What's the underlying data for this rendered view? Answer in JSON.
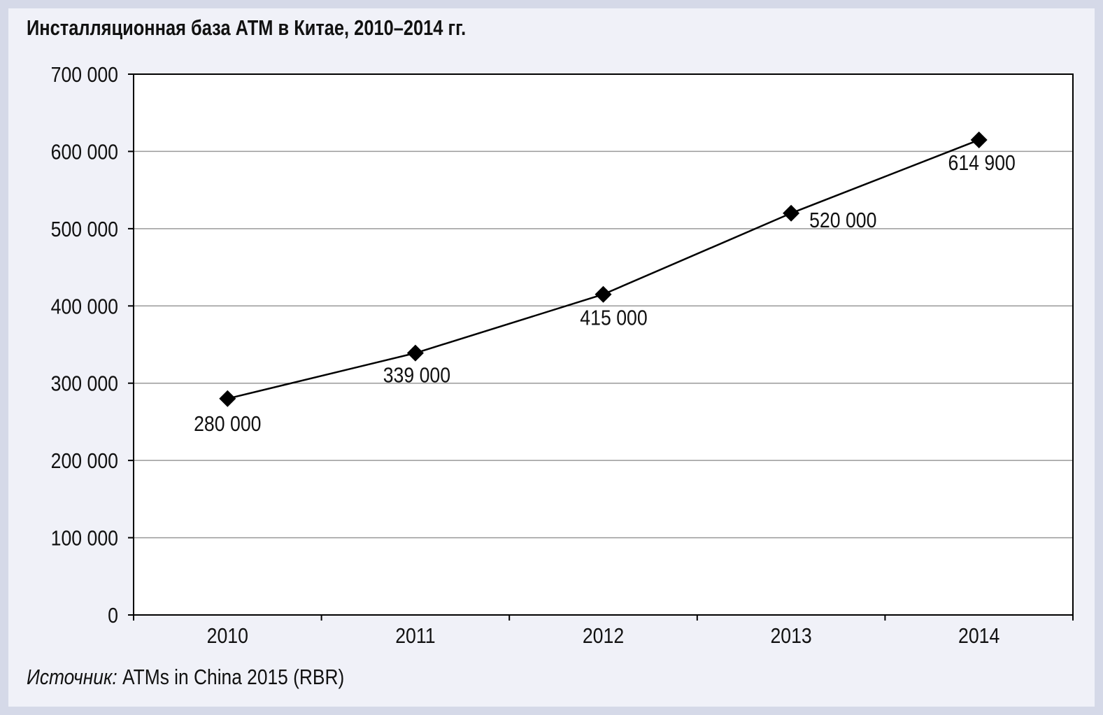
{
  "title": "Инсталляционная база АТМ в Китае, 2010–2014 гг.",
  "source": {
    "label": "Источник:",
    "text": " ATMs in China 2015 (RBR)"
  },
  "colors": {
    "page_background": "#d5d9e8",
    "panel_background": "#f0f1f8",
    "plot_background": "#ffffff",
    "line": "#000000",
    "gridline": "#9a9a9a"
  },
  "chart_data": {
    "type": "line",
    "title": "Инсталляционная база АТМ в Китае, 2010–2014 гг.",
    "xlabel": "",
    "ylabel": "",
    "categories": [
      "2010",
      "2011",
      "2012",
      "2013",
      "2014"
    ],
    "series": [
      {
        "values": [
          280000,
          339000,
          415000,
          520000,
          614900
        ],
        "data_labels": [
          "280 000",
          "339 000",
          "415 000",
          "520 000",
          "614 900"
        ],
        "marker": "diamond"
      }
    ],
    "ylim": [
      0,
      700000
    ],
    "yticks": [
      0,
      100000,
      200000,
      300000,
      400000,
      500000,
      600000,
      700000
    ],
    "ytick_labels": [
      "0",
      "100 000",
      "200 000",
      "300 000",
      "400 000",
      "500 000",
      "600 000",
      "700 000"
    ],
    "grid": true,
    "legend": "none"
  }
}
